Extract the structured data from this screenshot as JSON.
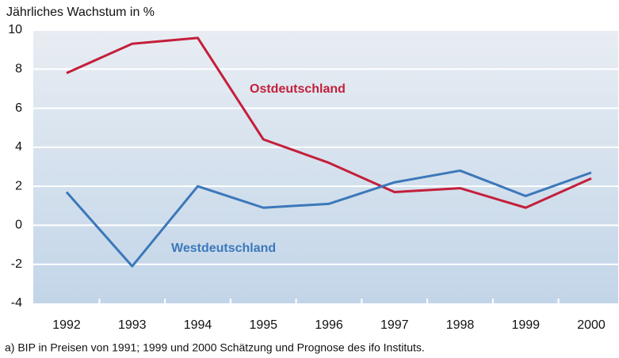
{
  "chart_data": {
    "type": "line",
    "y_label": "Jährliches Wachstum in %",
    "footnote": "a) BIP in Preisen von 1991;  1999 und 2000 Schätzung und Prognose des ifo Instituts.",
    "categories": [
      "1992",
      "1993",
      "1994",
      "1995",
      "1996",
      "1997",
      "1998",
      "1999",
      "2000"
    ],
    "series": [
      {
        "name": "Ostdeutschland",
        "color": "#c41f3b",
        "values": [
          7.8,
          9.3,
          9.6,
          4.4,
          3.2,
          1.7,
          1.9,
          0.9,
          2.4
        ]
      },
      {
        "name": "Westdeutschland",
        "color": "#3c78ba",
        "values": [
          1.7,
          -2.1,
          2.0,
          0.9,
          1.1,
          2.2,
          2.8,
          1.5,
          2.7
        ]
      }
    ],
    "ylim": [
      -4,
      10
    ],
    "yticks": [
      -4,
      -2,
      0,
      2,
      4,
      6,
      8,
      10
    ],
    "grid": true
  }
}
